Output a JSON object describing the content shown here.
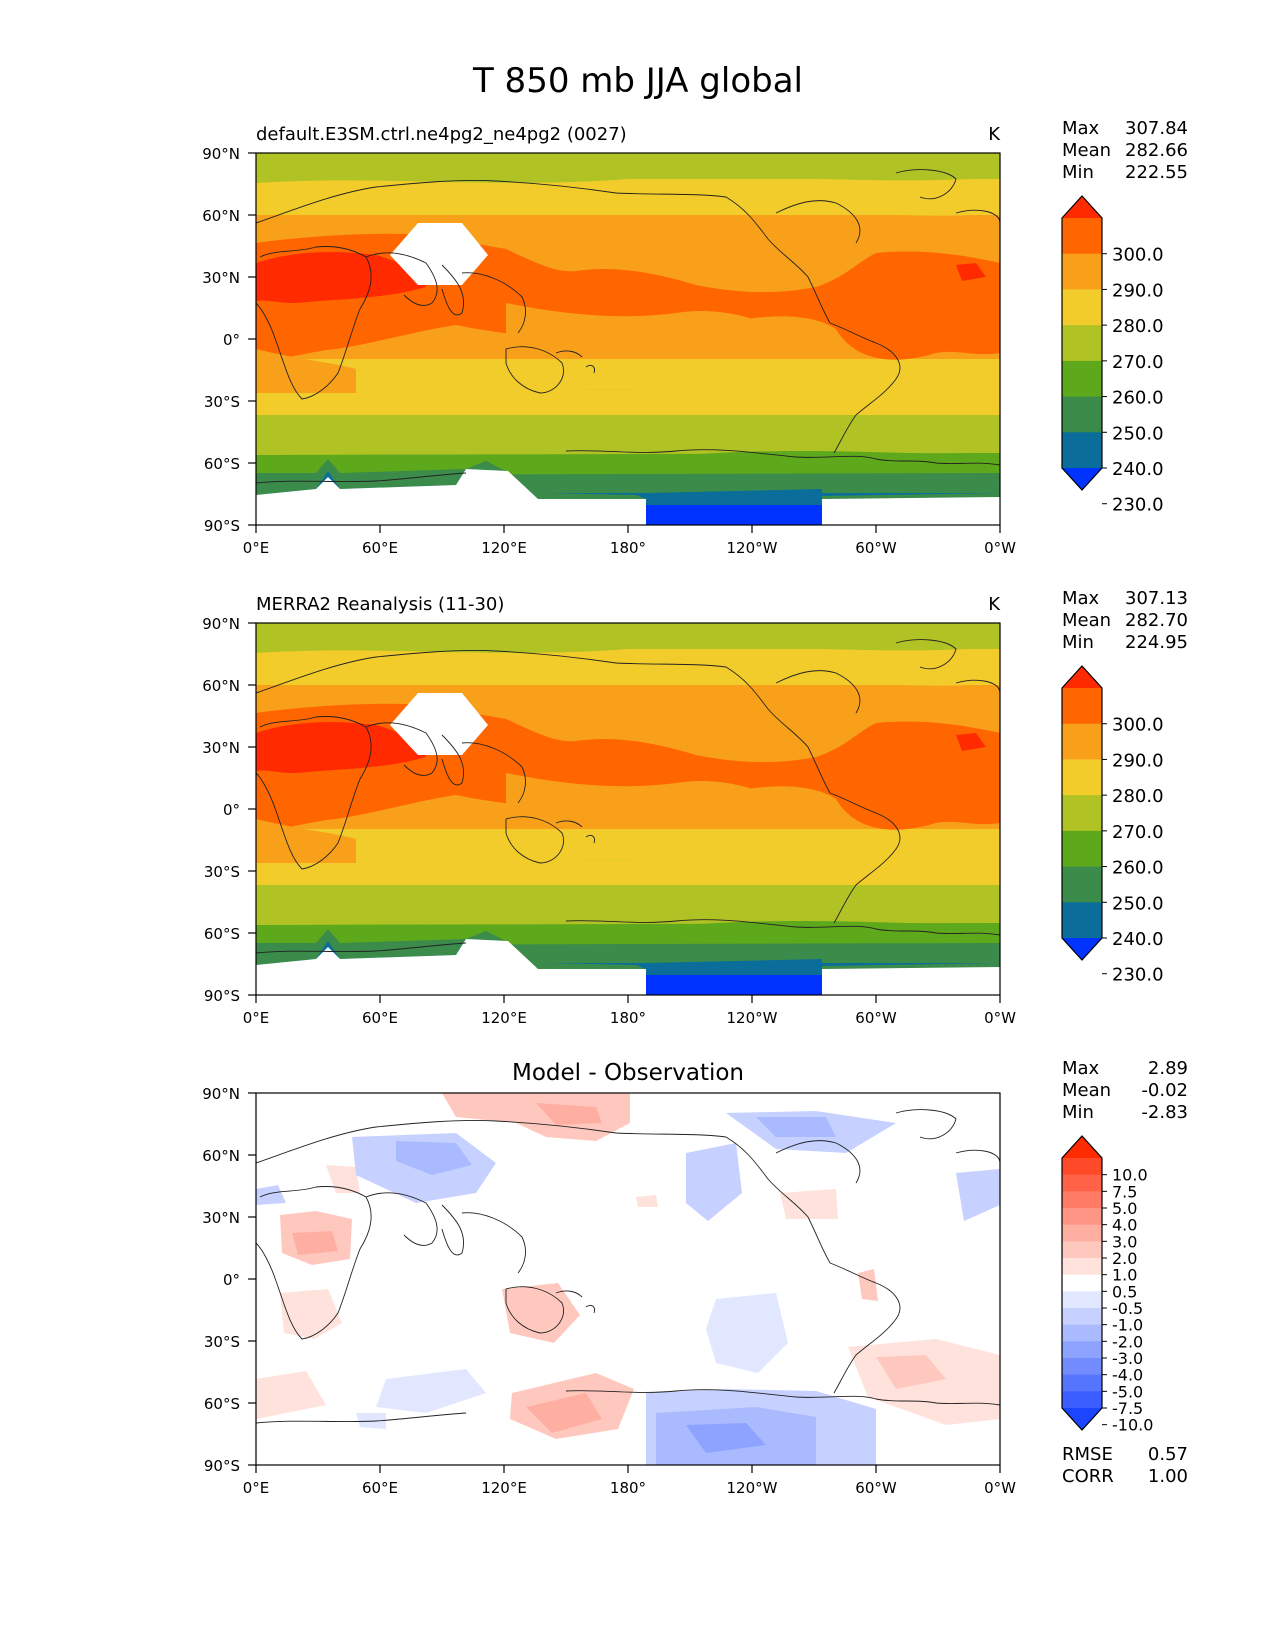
{
  "figure": {
    "title": "T 850 mb JJA global"
  },
  "axes": {
    "lat_labels": [
      "90°N",
      "60°N",
      "30°N",
      "0°",
      "30°S",
      "60°S",
      "90°S"
    ],
    "lon_labels": [
      "0°E",
      "60°E",
      "120°E",
      "180°",
      "120°W",
      "60°W",
      "0°W"
    ]
  },
  "panels": [
    {
      "id": "model",
      "title_left": "default.E3SM.ctrl.ne4pg2_ne4pg2 (0027)",
      "units": "K",
      "stats": [
        {
          "label": "Max",
          "value": "307.84"
        },
        {
          "label": "Mean",
          "value": "282.66"
        },
        {
          "label": "Min",
          "value": "222.55"
        }
      ],
      "colorbar": {
        "labels": [
          "300.0",
          "290.0",
          "280.0",
          "270.0",
          "260.0",
          "250.0",
          "240.0",
          "230.0"
        ],
        "colors": [
          "#ff2a00",
          "#ff6600",
          "#f9a01b",
          "#f2cc2a",
          "#b1c324",
          "#5ea91b",
          "#3b8b4a",
          "#0b6d9a",
          "#0033ff"
        ]
      }
    },
    {
      "id": "obs",
      "title_left": "MERRA2 Reanalysis (11-30)",
      "units": "K",
      "stats": [
        {
          "label": "Max",
          "value": "307.13"
        },
        {
          "label": "Mean",
          "value": "282.70"
        },
        {
          "label": "Min",
          "value": "224.95"
        }
      ],
      "colorbar": {
        "labels": [
          "300.0",
          "290.0",
          "280.0",
          "270.0",
          "260.0",
          "250.0",
          "240.0",
          "230.0"
        ],
        "colors": [
          "#ff2a00",
          "#ff6600",
          "#f9a01b",
          "#f2cc2a",
          "#b1c324",
          "#5ea91b",
          "#3b8b4a",
          "#0b6d9a",
          "#0033ff"
        ]
      }
    },
    {
      "id": "diff",
      "title_center": "Model - Observation",
      "stats": [
        {
          "label": "Max",
          "value": "2.89"
        },
        {
          "label": "Mean",
          "value": "-0.02"
        },
        {
          "label": "Min",
          "value": "-2.83"
        }
      ],
      "colorbar": {
        "labels": [
          "10.0",
          "7.5",
          "5.0",
          "4.0",
          "3.0",
          "2.0",
          "1.0",
          "0.5",
          "-0.5",
          "-1.0",
          "-2.0",
          "-3.0",
          "-4.0",
          "-5.0",
          "-7.5",
          "-10.0"
        ],
        "colors": [
          "#ff2a00",
          "#ff4a2a",
          "#ff6247",
          "#ff7b66",
          "#ff9584",
          "#ffafa2",
          "#ffc8bf",
          "#ffe2dc",
          "#ffffff",
          "#e1e7ff",
          "#c6d1ff",
          "#a9baff",
          "#8ea3ff",
          "#728cff",
          "#5575ff",
          "#3a5eff",
          "#1b45ff"
        ]
      },
      "metrics": [
        {
          "label": "RMSE",
          "value": "0.57"
        },
        {
          "label": "CORR",
          "value": "1.00"
        }
      ]
    }
  ]
}
